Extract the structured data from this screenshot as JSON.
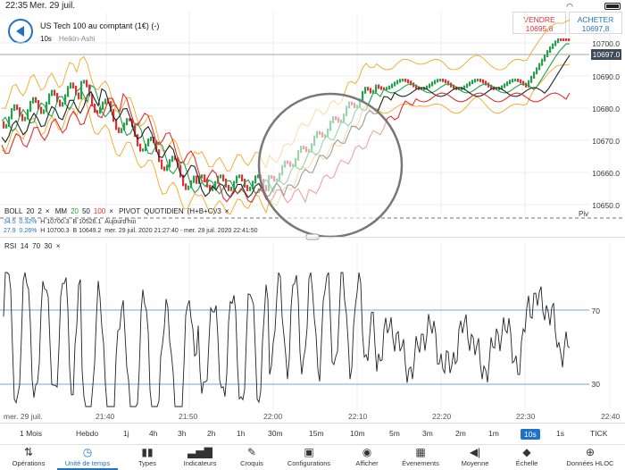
{
  "status": {
    "time": "22:35",
    "date": "Mer. 29 juil."
  },
  "header": {
    "instrument": "US Tech 100 au comptant (1€) (-)",
    "interval": "10s",
    "chart_style": "Heikin-Ashi"
  },
  "prices": {
    "sell_label": "VENDRE",
    "sell_value": "10695,8",
    "buy_label": "ACHETER",
    "buy_value": "10697,8"
  },
  "price_axis": {
    "labels": [
      "10700.0",
      "10690.0",
      "10680.0",
      "10670.0",
      "10660.0",
      "10650.0"
    ],
    "current": "10697.0"
  },
  "indicators": {
    "boll": "BOLL",
    "boll_p1": "20",
    "boll_p2": "2",
    "mm": "MM",
    "mm20": "20",
    "mm50": "50",
    "mm100": "100",
    "pivot": "PIVOT",
    "pivot_type": "QUOTIDIEN",
    "pivot_formula": "(H+B+C)/3",
    "close_x": "×",
    "row1": {
      "a": "34.5",
      "b": "0.32%",
      "h": "H 10700.3",
      "l": "B 10526.1",
      "label": "Aujourd'hui"
    },
    "row2": {
      "a": "27.9",
      "b": "0.26%",
      "h": "H 10700.3",
      "l": "B 10649.2",
      "range": "mer. 29 juil. 2020 21:27:40 - mer. 29 juil. 2020 22:41:50"
    },
    "piv_label": "Piv"
  },
  "rsi": {
    "label": "RSI",
    "p1": "14",
    "p2": "70",
    "p3": "30",
    "upper": "70",
    "lower": "30"
  },
  "time_axis": {
    "labels": [
      "mer. 29 juil.",
      "21:40",
      "21:50",
      "22:00",
      "22:10",
      "22:20",
      "22:30",
      "22:40"
    ]
  },
  "timeframes": [
    "1 Mois",
    "Hebdo",
    "1j",
    "4h",
    "3h",
    "2h",
    "1h",
    "30m",
    "15m",
    "10m",
    "5m",
    "3m",
    "2m",
    "1m",
    "10s",
    "1s",
    "TICK"
  ],
  "active_timeframe": "10s",
  "toolbar": [
    "Opérations",
    "Unité de temps",
    "Types",
    "Indicateurs",
    "Croquis",
    "Configurations",
    "Afficher",
    "Évenements",
    "Moyenne",
    "Échelle",
    "Données HLOC"
  ],
  "colors": {
    "up": "#23a04a",
    "down": "#e03030",
    "accent": "#1e73c8",
    "boll": "#f0a820",
    "mm20": "#23a04a",
    "mm50": "#222222",
    "mm100": "#e03030"
  }
}
